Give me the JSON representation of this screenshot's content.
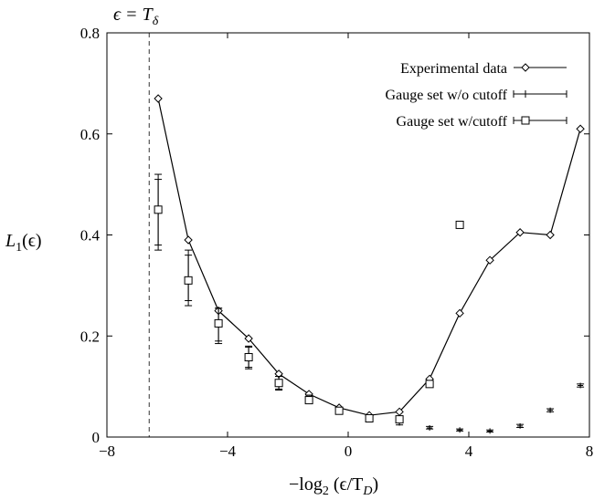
{
  "chart_data": {
    "type": "line",
    "annotation": "ϵ = T",
    "annotation_sub": "δ",
    "xlabel": "−log",
    "xlabel_sub1": "2",
    "xlabel_mid": " (ϵ/T",
    "xlabel_sub2": "D",
    "xlabel_end": ")",
    "ylabel": "L",
    "ylabel_sub": "1",
    "ylabel_end": "(ϵ)",
    "xlim": [
      -8,
      8
    ],
    "ylim": [
      0,
      0.8
    ],
    "x_ticks": [
      -8,
      -4,
      0,
      4,
      8
    ],
    "x_tick_labels": [
      "−8",
      "−4",
      "0",
      "4",
      "8"
    ],
    "y_ticks": [
      0,
      0.2,
      0.4,
      0.6,
      0.8
    ],
    "y_tick_labels": [
      "0",
      "0.2",
      "0.4",
      "0.6",
      "0.8"
    ],
    "vline_x": -6.6,
    "legend_position": "top-right",
    "series": [
      {
        "name": "Experimental data",
        "marker": "diamond",
        "line": true,
        "points": [
          {
            "x": -6.3,
            "y": 0.67
          },
          {
            "x": -5.3,
            "y": 0.39
          },
          {
            "x": -4.3,
            "y": 0.25
          },
          {
            "x": -3.3,
            "y": 0.195
          },
          {
            "x": -2.3,
            "y": 0.125
          },
          {
            "x": -1.3,
            "y": 0.085
          },
          {
            "x": -0.3,
            "y": 0.058
          },
          {
            "x": 0.7,
            "y": 0.043
          },
          {
            "x": 1.7,
            "y": 0.05
          },
          {
            "x": 2.7,
            "y": 0.115
          },
          {
            "x": 3.7,
            "y": 0.245
          },
          {
            "x": 4.7,
            "y": 0.35
          },
          {
            "x": 5.7,
            "y": 0.405
          },
          {
            "x": 6.7,
            "y": 0.4
          },
          {
            "x": 7.7,
            "y": 0.61
          }
        ]
      },
      {
        "name": "Gauge set w/o cutoff",
        "marker": "plus",
        "line": false,
        "points": [
          {
            "x": -6.3,
            "y": 0.445,
            "ylo": 0.37,
            "yhi": 0.51
          },
          {
            "x": -5.3,
            "y": 0.31,
            "ylo": 0.26,
            "yhi": 0.37
          },
          {
            "x": -4.3,
            "y": 0.225,
            "ylo": 0.185,
            "yhi": 0.255
          },
          {
            "x": -3.3,
            "y": 0.155,
            "ylo": 0.135,
            "yhi": 0.18
          },
          {
            "x": -2.3,
            "y": 0.105,
            "ylo": 0.093,
            "yhi": 0.12
          },
          {
            "x": -1.3,
            "y": 0.075,
            "ylo": 0.068,
            "yhi": 0.083
          },
          {
            "x": -0.3,
            "y": 0.053,
            "ylo": 0.049,
            "yhi": 0.058
          },
          {
            "x": 0.7,
            "y": 0.035,
            "ylo": 0.032,
            "yhi": 0.04
          },
          {
            "x": 1.7,
            "y": 0.028,
            "ylo": 0.024,
            "yhi": 0.034
          },
          {
            "x": 2.7,
            "y": 0.018,
            "ylo": 0.016,
            "yhi": 0.021
          },
          {
            "x": 3.7,
            "y": 0.014,
            "ylo": 0.012,
            "yhi": 0.016
          },
          {
            "x": 4.7,
            "y": 0.012,
            "ylo": 0.01,
            "yhi": 0.014
          },
          {
            "x": 5.7,
            "y": 0.022,
            "ylo": 0.019,
            "yhi": 0.025
          },
          {
            "x": 6.7,
            "y": 0.053,
            "ylo": 0.05,
            "yhi": 0.056
          },
          {
            "x": 7.7,
            "y": 0.102,
            "ylo": 0.099,
            "yhi": 0.105
          }
        ]
      },
      {
        "name": "Gauge set w/cutoff",
        "marker": "square",
        "line": false,
        "points": [
          {
            "x": -6.3,
            "y": 0.45,
            "ylo": 0.38,
            "yhi": 0.52
          },
          {
            "x": -5.3,
            "y": 0.31,
            "ylo": 0.27,
            "yhi": 0.36
          },
          {
            "x": -4.3,
            "y": 0.225,
            "ylo": 0.19,
            "yhi": 0.255
          },
          {
            "x": -3.3,
            "y": 0.158,
            "ylo": 0.138,
            "yhi": 0.178
          },
          {
            "x": -2.3,
            "y": 0.107,
            "ylo": 0.095,
            "yhi": 0.12
          },
          {
            "x": -1.3,
            "y": 0.073,
            "ylo": 0.067,
            "yhi": 0.08
          },
          {
            "x": -0.3,
            "y": 0.052,
            "ylo": 0.048,
            "yhi": 0.057
          },
          {
            "x": 0.7,
            "y": 0.037,
            "ylo": 0.034,
            "yhi": 0.041
          },
          {
            "x": 1.7,
            "y": 0.035,
            "ylo": 0.03,
            "yhi": 0.041
          },
          {
            "x": 2.7,
            "y": 0.105,
            "ylo": 0.1,
            "yhi": 0.11
          },
          {
            "x": 3.7,
            "y": 0.42,
            "ylo": 0.415,
            "yhi": 0.426
          }
        ]
      }
    ]
  }
}
